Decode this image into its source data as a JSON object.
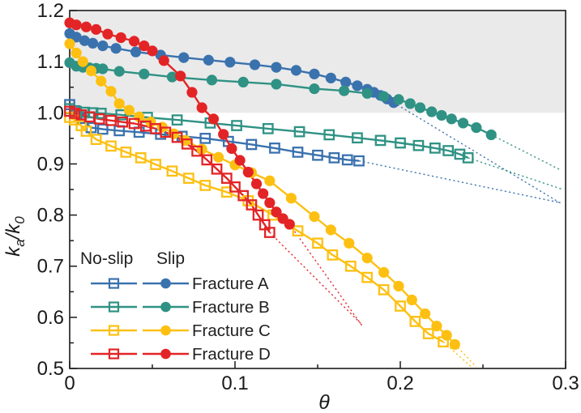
{
  "figure": {
    "background": "#ffffff",
    "ink_color": "#1a1a1a",
    "shaded_band": {
      "y_from": 1.0,
      "y_to": 1.2,
      "color": "#eaeaea"
    }
  },
  "axes": {
    "x": {
      "label": "θ",
      "min": 0,
      "max": 0.3,
      "major_ticks": [
        0,
        0.1,
        0.2,
        0.3
      ],
      "tick_labels": [
        "0",
        "0.1",
        "0.2",
        "0.3"
      ],
      "minor_ticks": [
        0.05,
        0.15,
        0.25
      ]
    },
    "y": {
      "label": "ka/k0",
      "label_parts": [
        "k",
        "a",
        "/",
        "k",
        "0"
      ],
      "min": 0.5,
      "max": 1.2,
      "major_ticks": [
        1.2,
        1.1,
        1.0,
        0.9,
        0.8,
        0.7,
        0.6,
        0.5
      ],
      "tick_labels": [
        "1.2",
        "1.1",
        "1.0",
        "0.9",
        "0.8",
        "0.7",
        "0.6",
        "0.5"
      ],
      "minor_ticks": [
        1.15,
        1.05,
        0.95,
        0.85,
        0.75,
        0.65,
        0.55
      ]
    }
  },
  "legend": {
    "column_headers": [
      "No-slip",
      "Slip"
    ],
    "no_slip_marker": "open-square",
    "slip_marker": "filled-circle",
    "entries": [
      {
        "label": "Fracture A",
        "color": "#3a72ae"
      },
      {
        "label": "Fracture B",
        "color": "#2f9284"
      },
      {
        "label": "Fracture C",
        "color": "#fdc012"
      },
      {
        "label": "Fracture D",
        "color": "#e32426"
      }
    ]
  },
  "chart_data": {
    "type": "line",
    "title": "",
    "xlabel": "θ",
    "ylabel": "ka/k0",
    "xlim": [
      0,
      0.3
    ],
    "ylim": [
      0.5,
      1.2
    ],
    "grid": false,
    "legend_position": "bottom-left",
    "shaded_band": {
      "y_from": 1.0,
      "y_to": 1.2
    },
    "series": [
      {
        "name": "Fracture A (slip)",
        "fracture": "A",
        "condition": "slip",
        "marker": "filled-circle",
        "color": "#3a72ae",
        "points": [
          [
            0.0,
            1.155
          ],
          [
            0.004,
            1.148
          ],
          [
            0.009,
            1.141
          ],
          [
            0.014,
            1.136
          ],
          [
            0.02,
            1.131
          ],
          [
            0.028,
            1.126
          ],
          [
            0.04,
            1.119
          ],
          [
            0.055,
            1.113
          ],
          [
            0.069,
            1.108
          ],
          [
            0.084,
            1.103
          ],
          [
            0.097,
            1.099
          ],
          [
            0.112,
            1.094
          ],
          [
            0.125,
            1.089
          ],
          [
            0.137,
            1.083
          ],
          [
            0.148,
            1.076
          ],
          [
            0.158,
            1.068
          ],
          [
            0.167,
            1.06
          ],
          [
            0.174,
            1.053
          ],
          [
            0.18,
            1.046
          ],
          [
            0.184,
            1.04
          ],
          [
            0.188,
            1.034
          ],
          [
            0.192,
            1.027
          ],
          [
            0.196,
            1.02
          ]
        ],
        "dotted_extension": [
          [
            0.196,
            1.02
          ],
          [
            0.297,
            0.823
          ]
        ]
      },
      {
        "name": "Fracture A (no-slip)",
        "fracture": "A",
        "condition": "no-slip",
        "marker": "open-square",
        "color": "#3a72ae",
        "points": [
          [
            0.0,
            1.016
          ],
          [
            0.003,
            1.004
          ],
          [
            0.007,
            0.989
          ],
          [
            0.013,
            0.971
          ],
          [
            0.02,
            0.968
          ],
          [
            0.03,
            0.965
          ],
          [
            0.042,
            0.962
          ],
          [
            0.055,
            0.958
          ],
          [
            0.068,
            0.954
          ],
          [
            0.082,
            0.95
          ],
          [
            0.096,
            0.944
          ],
          [
            0.11,
            0.938
          ],
          [
            0.124,
            0.931
          ],
          [
            0.138,
            0.923
          ],
          [
            0.15,
            0.917
          ],
          [
            0.16,
            0.912
          ],
          [
            0.168,
            0.908
          ],
          [
            0.175,
            0.906
          ]
        ],
        "dotted_extension": [
          [
            0.175,
            0.906
          ],
          [
            0.297,
            0.824
          ]
        ]
      },
      {
        "name": "Fracture B (slip)",
        "fracture": "B",
        "condition": "slip",
        "marker": "filled-circle",
        "color": "#2f9284",
        "points": [
          [
            0.0,
            1.098
          ],
          [
            0.004,
            1.091
          ],
          [
            0.008,
            1.089
          ],
          [
            0.012,
            1.088
          ],
          [
            0.016,
            1.087
          ],
          [
            0.02,
            1.086
          ],
          [
            0.03,
            1.081
          ],
          [
            0.045,
            1.076
          ],
          [
            0.062,
            1.07
          ],
          [
            0.086,
            1.064
          ],
          [
            0.105,
            1.06
          ],
          [
            0.125,
            1.056
          ],
          [
            0.148,
            1.047
          ],
          [
            0.166,
            1.043
          ],
          [
            0.18,
            1.038
          ],
          [
            0.19,
            1.032
          ],
          [
            0.199,
            1.026
          ],
          [
            0.206,
            1.018
          ],
          [
            0.212,
            1.01
          ],
          [
            0.219,
            1.002
          ],
          [
            0.225,
            0.995
          ],
          [
            0.231,
            0.988
          ],
          [
            0.238,
            0.98
          ],
          [
            0.246,
            0.971
          ],
          [
            0.255,
            0.957
          ]
        ],
        "dotted_extension": [
          [
            0.255,
            0.957
          ],
          [
            0.297,
            0.888
          ]
        ]
      },
      {
        "name": "Fracture B (no-slip)",
        "fracture": "B",
        "condition": "no-slip",
        "marker": "open-square",
        "color": "#2f9284",
        "points": [
          [
            0.0,
            1.008
          ],
          [
            0.004,
            1.003
          ],
          [
            0.009,
            1.001
          ],
          [
            0.014,
            1.0
          ],
          [
            0.019,
            0.999
          ],
          [
            0.031,
            0.996
          ],
          [
            0.047,
            0.991
          ],
          [
            0.065,
            0.986
          ],
          [
            0.085,
            0.98
          ],
          [
            0.101,
            0.975
          ],
          [
            0.12,
            0.969
          ],
          [
            0.139,
            0.963
          ],
          [
            0.157,
            0.957
          ],
          [
            0.174,
            0.951
          ],
          [
            0.188,
            0.946
          ],
          [
            0.2,
            0.941
          ],
          [
            0.211,
            0.936
          ],
          [
            0.221,
            0.931
          ],
          [
            0.229,
            0.926
          ],
          [
            0.236,
            0.919
          ],
          [
            0.241,
            0.912
          ]
        ],
        "dotted_extension": [
          [
            0.241,
            0.912
          ],
          [
            0.2975,
            0.851
          ]
        ]
      },
      {
        "name": "Fracture C (slip)",
        "fracture": "C",
        "condition": "slip",
        "marker": "filled-circle",
        "color": "#fdc012",
        "points": [
          [
            0.0,
            1.135
          ],
          [
            0.004,
            1.117
          ],
          [
            0.008,
            1.1
          ],
          [
            0.013,
            1.082
          ],
          [
            0.019,
            1.062
          ],
          [
            0.025,
            1.042
          ],
          [
            0.03,
            1.018
          ],
          [
            0.036,
            1.005
          ],
          [
            0.042,
            0.992
          ],
          [
            0.049,
            0.982
          ],
          [
            0.056,
            0.972
          ],
          [
            0.063,
            0.959
          ],
          [
            0.07,
            0.946
          ],
          [
            0.08,
            0.929
          ],
          [
            0.09,
            0.913
          ],
          [
            0.1,
            0.898
          ],
          [
            0.11,
            0.883
          ],
          [
            0.121,
            0.867
          ],
          [
            0.134,
            0.833
          ],
          [
            0.148,
            0.797
          ],
          [
            0.158,
            0.771
          ],
          [
            0.169,
            0.745
          ],
          [
            0.18,
            0.716
          ],
          [
            0.19,
            0.688
          ],
          [
            0.199,
            0.661
          ],
          [
            0.207,
            0.634
          ],
          [
            0.215,
            0.607
          ],
          [
            0.222,
            0.583
          ],
          [
            0.228,
            0.565
          ],
          [
            0.233,
            0.547
          ]
        ],
        "dotted_extension": [
          [
            0.233,
            0.547
          ],
          [
            0.246,
            0.503
          ]
        ]
      },
      {
        "name": "Fracture C (no-slip)",
        "fracture": "C",
        "condition": "no-slip",
        "marker": "open-square",
        "color": "#fdc012",
        "points": [
          [
            0.0,
            0.991
          ],
          [
            0.003,
            0.986
          ],
          [
            0.007,
            0.975
          ],
          [
            0.01,
            0.964
          ],
          [
            0.016,
            0.948
          ],
          [
            0.025,
            0.935
          ],
          [
            0.034,
            0.923
          ],
          [
            0.043,
            0.912
          ],
          [
            0.052,
            0.899
          ],
          [
            0.062,
            0.886
          ],
          [
            0.072,
            0.872
          ],
          [
            0.082,
            0.858
          ],
          [
            0.095,
            0.845
          ],
          [
            0.108,
            0.828
          ],
          [
            0.123,
            0.8
          ],
          [
            0.138,
            0.769
          ],
          [
            0.15,
            0.745
          ],
          [
            0.159,
            0.722
          ],
          [
            0.17,
            0.7
          ],
          [
            0.18,
            0.678
          ],
          [
            0.19,
            0.654
          ],
          [
            0.2,
            0.622
          ],
          [
            0.209,
            0.592
          ],
          [
            0.217,
            0.568
          ],
          [
            0.226,
            0.552
          ]
        ],
        "dotted_extension": [
          [
            0.226,
            0.552
          ],
          [
            0.243,
            0.503
          ]
        ]
      },
      {
        "name": "Fracture D (slip)",
        "fracture": "D",
        "condition": "slip",
        "marker": "filled-circle",
        "color": "#e32426",
        "points": [
          [
            0.0,
            1.176
          ],
          [
            0.004,
            1.172
          ],
          [
            0.01,
            1.168
          ],
          [
            0.016,
            1.163
          ],
          [
            0.023,
            1.154
          ],
          [
            0.031,
            1.147
          ],
          [
            0.039,
            1.14
          ],
          [
            0.045,
            1.131
          ],
          [
            0.05,
            1.121
          ],
          [
            0.057,
            1.102
          ],
          [
            0.067,
            1.072
          ],
          [
            0.074,
            1.04
          ],
          [
            0.08,
            1.01
          ],
          [
            0.087,
            0.988
          ],
          [
            0.093,
            0.958
          ],
          [
            0.098,
            0.93
          ],
          [
            0.103,
            0.907
          ],
          [
            0.108,
            0.884
          ],
          [
            0.113,
            0.861
          ],
          [
            0.117,
            0.842
          ],
          [
            0.121,
            0.824
          ],
          [
            0.125,
            0.806
          ],
          [
            0.129,
            0.793
          ],
          [
            0.133,
            0.782
          ]
        ],
        "dotted_extension": [
          [
            0.133,
            0.782
          ],
          [
            0.177,
            0.583
          ]
        ]
      },
      {
        "name": "Fracture D (no-slip)",
        "fracture": "D",
        "condition": "no-slip",
        "marker": "open-square",
        "color": "#e32426",
        "points": [
          [
            0.0,
            1.003
          ],
          [
            0.003,
            0.999
          ],
          [
            0.007,
            0.996
          ],
          [
            0.012,
            0.992
          ],
          [
            0.018,
            0.988
          ],
          [
            0.025,
            0.985
          ],
          [
            0.032,
            0.982
          ],
          [
            0.039,
            0.979
          ],
          [
            0.046,
            0.974
          ],
          [
            0.052,
            0.969
          ],
          [
            0.058,
            0.962
          ],
          [
            0.065,
            0.952
          ],
          [
            0.071,
            0.939
          ],
          [
            0.077,
            0.925
          ],
          [
            0.083,
            0.908
          ],
          [
            0.089,
            0.89
          ],
          [
            0.095,
            0.872
          ],
          [
            0.1,
            0.855
          ],
          [
            0.105,
            0.838
          ],
          [
            0.11,
            0.82
          ],
          [
            0.114,
            0.8
          ],
          [
            0.118,
            0.781
          ],
          [
            0.121,
            0.766
          ]
        ],
        "dotted_extension": [
          [
            0.121,
            0.766
          ],
          [
            0.177,
            0.585
          ]
        ]
      }
    ]
  }
}
